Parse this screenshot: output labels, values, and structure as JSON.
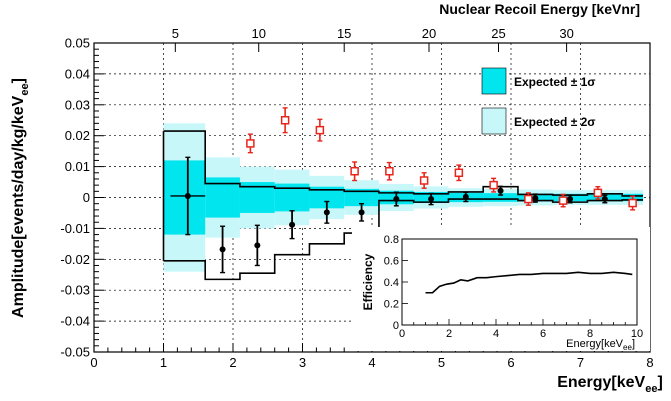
{
  "chart_data": {
    "type": "scatter",
    "title": "",
    "xlabel": "Energy[keV",
    "xlabel_sub": "ee",
    "xlabel_close": "]",
    "ylabel": "Amplitude[events/day/kg/keV",
    "ylabel_sub": "ee",
    "ylabel_close": "]",
    "xlim": [
      0,
      8
    ],
    "ylim": [
      -0.05,
      0.05
    ],
    "x_ticks": [
      "0",
      "1",
      "2",
      "3",
      "4",
      "5",
      "6",
      "7",
      "8"
    ],
    "y_ticks": [
      "-0.05",
      "-0.04",
      "-0.03",
      "-0.02",
      "-0.01",
      "0",
      "0.01",
      "0.02",
      "0.03",
      "0.04",
      "0.05"
    ],
    "grid": true,
    "top_axis": {
      "label": "Nuclear Recoil Energy [keVnr]",
      "ticks": [
        {
          "label": "5",
          "x": 1.17
        },
        {
          "label": "10",
          "x": 2.37
        },
        {
          "label": "15",
          "x": 3.6
        },
        {
          "label": "20",
          "x": 4.82
        },
        {
          "label": "25",
          "x": 5.82
        },
        {
          "label": "30",
          "x": 6.8
        }
      ]
    },
    "legend": [
      {
        "label": "Expected ± 1σ",
        "color": "#00e5ee",
        "position": "top-right"
      },
      {
        "label": "Expected ± 2σ",
        "color": "#c8f7f9",
        "position": "top-right"
      }
    ],
    "band_edges": [
      1.0,
      1.6,
      2.1,
      2.6,
      3.1,
      3.6,
      4.1,
      4.6,
      5.1,
      5.6,
      6.1,
      6.6,
      7.1,
      7.6,
      7.9
    ],
    "band_1sigma": [
      [
        -0.012,
        0.012
      ],
      [
        -0.0065,
        0.0065
      ],
      [
        -0.005,
        0.005
      ],
      [
        -0.0045,
        0.0045
      ],
      [
        -0.0035,
        0.0035
      ],
      [
        -0.0028,
        0.0028
      ],
      [
        -0.0022,
        0.0022
      ],
      [
        -0.0018,
        0.0018
      ],
      [
        -0.0015,
        0.0015
      ],
      [
        -0.0014,
        0.0014
      ],
      [
        -0.0013,
        0.0013
      ],
      [
        -0.0012,
        0.0012
      ],
      [
        -0.0012,
        0.0012
      ],
      [
        -0.0012,
        0.0012
      ]
    ],
    "band_2sigma": [
      [
        -0.024,
        0.024
      ],
      [
        -0.013,
        0.013
      ],
      [
        -0.01,
        0.01
      ],
      [
        -0.009,
        0.009
      ],
      [
        -0.007,
        0.007
      ],
      [
        -0.0056,
        0.0056
      ],
      [
        -0.0044,
        0.0044
      ],
      [
        -0.0036,
        0.0036
      ],
      [
        -0.003,
        0.003
      ],
      [
        -0.0028,
        0.0028
      ],
      [
        -0.0026,
        0.0026
      ],
      [
        -0.0024,
        0.0024
      ],
      [
        -0.0024,
        0.0024
      ],
      [
        -0.0024,
        0.0024
      ]
    ],
    "outline_upper": [
      0.0215,
      0.0045,
      0.0035,
      0.003,
      0.0025,
      0.002,
      0.0015,
      0.0012,
      0.0018,
      0.0035,
      0.001,
      0.0008,
      0.0012,
      0.0005
    ],
    "outline_lower": [
      -0.0205,
      -0.0265,
      -0.0245,
      -0.0185,
      -0.015,
      -0.0115,
      -0.001,
      -0.0015,
      -0.0005,
      -0.0005,
      -0.001,
      -0.0015,
      -0.001,
      -0.0008
    ],
    "series": [
      {
        "marker": "filled-circle",
        "color": "#000000",
        "points": [
          {
            "x": 1.35,
            "y": 0.0005,
            "err": 0.0125,
            "xerr": 0.25
          },
          {
            "x": 1.85,
            "y": -0.0168,
            "err": 0.0075,
            "xerr": 0.0
          },
          {
            "x": 2.35,
            "y": -0.0155,
            "err": 0.0065,
            "xerr": 0.0
          },
          {
            "x": 2.85,
            "y": -0.0088,
            "err": 0.0045,
            "xerr": 0.0
          },
          {
            "x": 3.35,
            "y": -0.0048,
            "err": 0.0035,
            "xerr": 0.0
          },
          {
            "x": 3.85,
            "y": -0.0048,
            "err": 0.0028,
            "xerr": 0.0
          },
          {
            "x": 4.35,
            "y": -0.0005,
            "err": 0.0022,
            "xerr": 0.0
          },
          {
            "x": 4.85,
            "y": -0.0005,
            "err": 0.0018,
            "xerr": 0.0
          },
          {
            "x": 5.35,
            "y": 0.0002,
            "err": 0.0015,
            "xerr": 0.0
          },
          {
            "x": 5.85,
            "y": 0.0022,
            "err": 0.0014,
            "xerr": 0.0
          },
          {
            "x": 6.35,
            "y": -0.0002,
            "err": 0.0013,
            "xerr": 0.0
          },
          {
            "x": 6.85,
            "y": -0.0005,
            "err": 0.0012,
            "xerr": 0.0
          },
          {
            "x": 7.35,
            "y": -0.0005,
            "err": 0.0012,
            "xerr": 0.0
          }
        ]
      },
      {
        "marker": "open-square",
        "color": "#e8251b",
        "points": [
          {
            "x": 2.25,
            "y": 0.0175,
            "err": 0.003
          },
          {
            "x": 2.75,
            "y": 0.025,
            "err": 0.004
          },
          {
            "x": 3.25,
            "y": 0.0218,
            "err": 0.0035
          },
          {
            "x": 3.75,
            "y": 0.0085,
            "err": 0.003
          },
          {
            "x": 4.25,
            "y": 0.0085,
            "err": 0.0028
          },
          {
            "x": 4.75,
            "y": 0.0055,
            "err": 0.0025
          },
          {
            "x": 5.25,
            "y": 0.008,
            "err": 0.0025
          },
          {
            "x": 5.75,
            "y": 0.004,
            "err": 0.0022
          },
          {
            "x": 6.25,
            "y": -0.0005,
            "err": 0.002
          },
          {
            "x": 6.75,
            "y": -0.001,
            "err": 0.002
          },
          {
            "x": 7.25,
            "y": 0.0015,
            "err": 0.002
          },
          {
            "x": 7.75,
            "y": -0.0018,
            "err": 0.0022
          }
        ]
      }
    ],
    "inset": {
      "type": "line",
      "xlabel": "Energy[keV",
      "xlabel_sub": "ee",
      "xlabel_close": "]",
      "ylabel": "Efficiency",
      "xlim": [
        0,
        10
      ],
      "ylim": [
        0,
        0.8
      ],
      "x_ticks": [
        "0",
        "2",
        "4",
        "6",
        "8",
        "10"
      ],
      "y_ticks": [
        "0",
        "0.2",
        "0.4",
        "0.6",
        "0.8"
      ],
      "x": [
        1.0,
        1.3,
        1.6,
        1.9,
        2.2,
        2.5,
        2.8,
        3.2,
        3.6,
        4.0,
        4.5,
        5.0,
        5.5,
        6.0,
        6.5,
        7.0,
        7.5,
        8.0,
        8.5,
        9.0,
        9.5,
        9.8
      ],
      "y": [
        0.3,
        0.3,
        0.36,
        0.38,
        0.39,
        0.42,
        0.41,
        0.44,
        0.44,
        0.45,
        0.46,
        0.47,
        0.47,
        0.48,
        0.48,
        0.48,
        0.49,
        0.48,
        0.48,
        0.49,
        0.48,
        0.47
      ]
    }
  }
}
